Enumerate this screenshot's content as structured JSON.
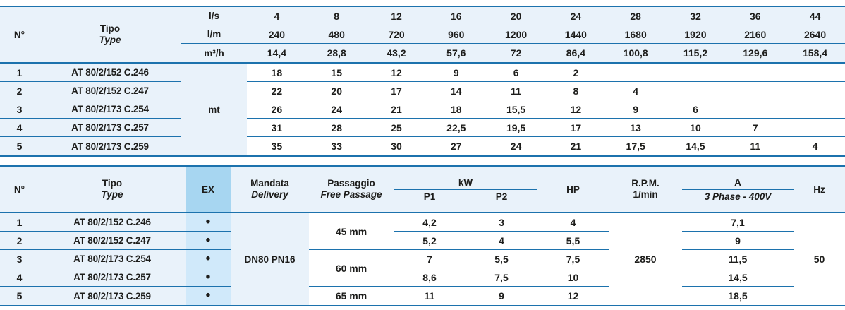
{
  "colors": {
    "rule": "#1c72ad",
    "row_tint": "#e9f2fa",
    "ex_header_bg": "#a7d6f1",
    "ex_body_bg": "#d0e9fa",
    "text": "#1d1d1b",
    "page_bg": "#ffffff"
  },
  "table1": {
    "headers": {
      "no": "N°",
      "tipo": "Tipo",
      "type": "Type"
    },
    "unit_rows": [
      {
        "label": "l/s",
        "values": [
          "4",
          "8",
          "12",
          "16",
          "20",
          "24",
          "28",
          "32",
          "36",
          "44"
        ]
      },
      {
        "label": "l/m",
        "values": [
          "240",
          "480",
          "720",
          "960",
          "1200",
          "1440",
          "1680",
          "1920",
          "2160",
          "2640"
        ]
      },
      {
        "label": "m³/h",
        "values": [
          "14,4",
          "28,8",
          "43,2",
          "57,6",
          "72",
          "86,4",
          "100,8",
          "115,2",
          "129,6",
          "158,4"
        ]
      }
    ],
    "body_unit_label": "mt",
    "rows": [
      {
        "no": "1",
        "tipo": "AT 80/2/152 C.246",
        "values": [
          "18",
          "15",
          "12",
          "9",
          "6",
          "2",
          "",
          "",
          "",
          ""
        ]
      },
      {
        "no": "2",
        "tipo": "AT 80/2/152 C.247",
        "values": [
          "22",
          "20",
          "17",
          "14",
          "11",
          "8",
          "4",
          "",
          "",
          ""
        ]
      },
      {
        "no": "3",
        "tipo": "AT 80/2/173 C.254",
        "values": [
          "26",
          "24",
          "21",
          "18",
          "15,5",
          "12",
          "9",
          "6",
          "",
          ""
        ]
      },
      {
        "no": "4",
        "tipo": "AT 80/2/173 C.257",
        "values": [
          "31",
          "28",
          "25",
          "22,5",
          "19,5",
          "17",
          "13",
          "10",
          "7",
          ""
        ]
      },
      {
        "no": "5",
        "tipo": "AT 80/2/173 C.259",
        "values": [
          "35",
          "33",
          "30",
          "27",
          "24",
          "21",
          "17,5",
          "14,5",
          "11",
          "4"
        ]
      }
    ]
  },
  "table2": {
    "headers": {
      "no": "N°",
      "tipo": "Tipo",
      "type": "Type",
      "ex": "EX",
      "mandata": "Mandata",
      "delivery": "Delivery",
      "passaggio": "Passaggio",
      "free_passage": "Free Passage",
      "kw": "kW",
      "p1": "P1",
      "p2": "P2",
      "hp": "HP",
      "rpm_line1": "R.P.M.",
      "rpm_line2": "1/min",
      "a": "A",
      "a_sub": "3 Phase - 400V",
      "hz": "Hz"
    },
    "ex_marker": "•",
    "rows": [
      {
        "no": "1",
        "tipo": "AT 80/2/152 C.246",
        "p1": "4,2",
        "p2": "3",
        "hp": "4",
        "a": "7,1"
      },
      {
        "no": "2",
        "tipo": "AT 80/2/152 C.247",
        "p1": "5,2",
        "p2": "4",
        "hp": "5,5",
        "a": "9"
      },
      {
        "no": "3",
        "tipo": "AT 80/2/173 C.254",
        "p1": "7",
        "p2": "5,5",
        "hp": "7,5",
        "a": "11,5"
      },
      {
        "no": "4",
        "tipo": "AT 80/2/173 C.257",
        "p1": "8,6",
        "p2": "7,5",
        "hp": "10",
        "a": "14,5"
      },
      {
        "no": "5",
        "tipo": "AT 80/2/173 C.259",
        "p1": "11",
        "p2": "9",
        "hp": "12",
        "a": "18,5"
      }
    ],
    "merged": {
      "mandata": "DN80 PN16",
      "passage_groups": [
        {
          "label": "45 mm",
          "rows": 2
        },
        {
          "label": "60 mm",
          "rows": 2
        },
        {
          "label": "65 mm",
          "rows": 1
        }
      ],
      "rpm": "2850",
      "hz": "50"
    }
  }
}
